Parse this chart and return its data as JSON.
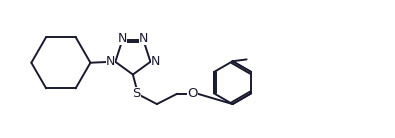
{
  "background": "#ffffff",
  "line_color": "#1a1a2e",
  "line_width": 1.4,
  "dbo": 0.025,
  "label_S": "S",
  "label_O": "O",
  "label_N": "N",
  "font_size": 8.5,
  "figsize": [
    3.95,
    1.38
  ],
  "dpi": 100,
  "xlim": [
    0,
    10.5
  ],
  "ylim": [
    0,
    3.7
  ]
}
